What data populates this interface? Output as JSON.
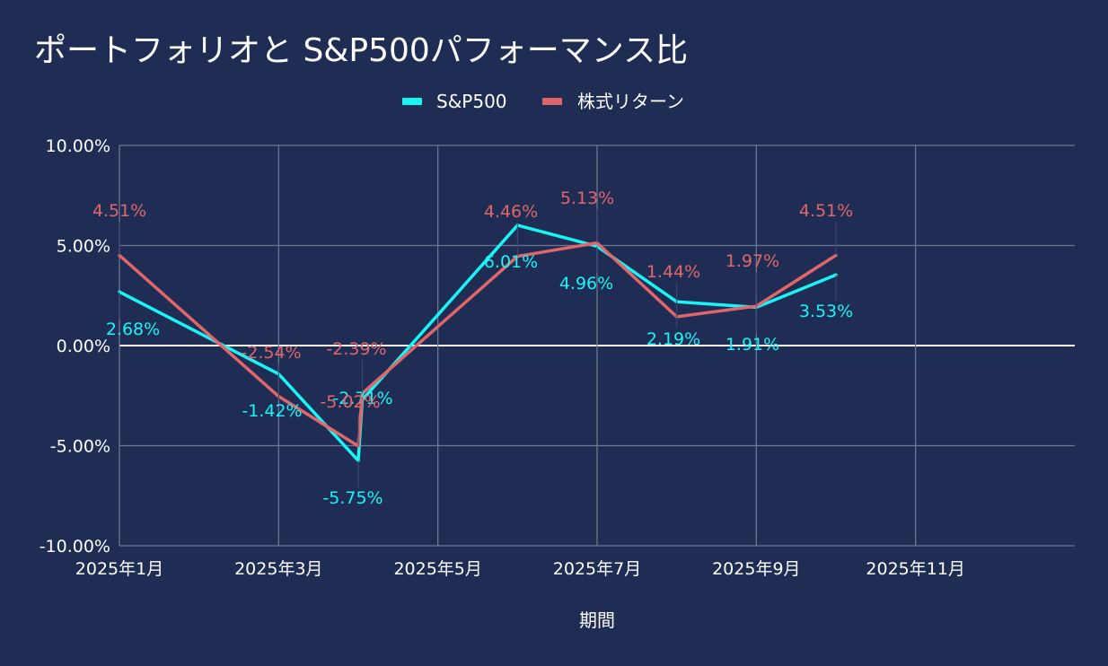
{
  "chart_data": {
    "type": "line",
    "title": "ポートフォリオと S&P500パフォーマンス比",
    "xlabel": "期間",
    "ylabel": "",
    "x": [
      "2025-01",
      "2025-03",
      "2025-04a",
      "2025-04b",
      "2025-06",
      "2025-07",
      "2025-08",
      "2025-09",
      "2025-10"
    ],
    "x_months": [
      1.0,
      3.0,
      4.0,
      4.05,
      6.0,
      7.0,
      8.0,
      9.0,
      10.0
    ],
    "x_ticks": [
      {
        "label": "2025年1月",
        "month": 1
      },
      {
        "label": "2025年3月",
        "month": 3
      },
      {
        "label": "2025年5月",
        "month": 5
      },
      {
        "label": "2025年7月",
        "month": 7
      },
      {
        "label": "2025年9月",
        "month": 9
      },
      {
        "label": "2025年11月",
        "month": 11
      }
    ],
    "xlim": [
      1,
      13
    ],
    "ylim": [
      -10,
      10
    ],
    "y_ticks": [
      {
        "label": "10.00%",
        "value": 10
      },
      {
        "label": "5.00%",
        "value": 5
      },
      {
        "label": "0.00%",
        "value": 0
      },
      {
        "label": "-5.00%",
        "value": -5
      },
      {
        "label": "-10.00%",
        "value": -10
      }
    ],
    "legend_position": "top-center",
    "grid": true,
    "series": [
      {
        "name": "S&P500",
        "color": "#19f5f5",
        "values": [
          2.68,
          -1.42,
          -5.75,
          -2.71,
          6.01,
          4.96,
          2.19,
          1.91,
          3.53
        ],
        "labels": [
          "2.68%",
          "-1.42%",
          "-5.75%",
          "-2.71%",
          "6.01%",
          "4.96%",
          "2.19%",
          "1.91%",
          "3.53%"
        ]
      },
      {
        "name": "株式リターン",
        "color": "#e0666a",
        "values": [
          4.51,
          -2.54,
          -5.02,
          -2.39,
          4.46,
          5.13,
          1.44,
          1.97,
          4.51
        ],
        "labels": [
          "4.51%",
          "-2.54%",
          "-5.02%",
          "-2.39%",
          "4.46%",
          "5.13%",
          "1.44%",
          "1.97%",
          "4.51%"
        ]
      }
    ]
  }
}
